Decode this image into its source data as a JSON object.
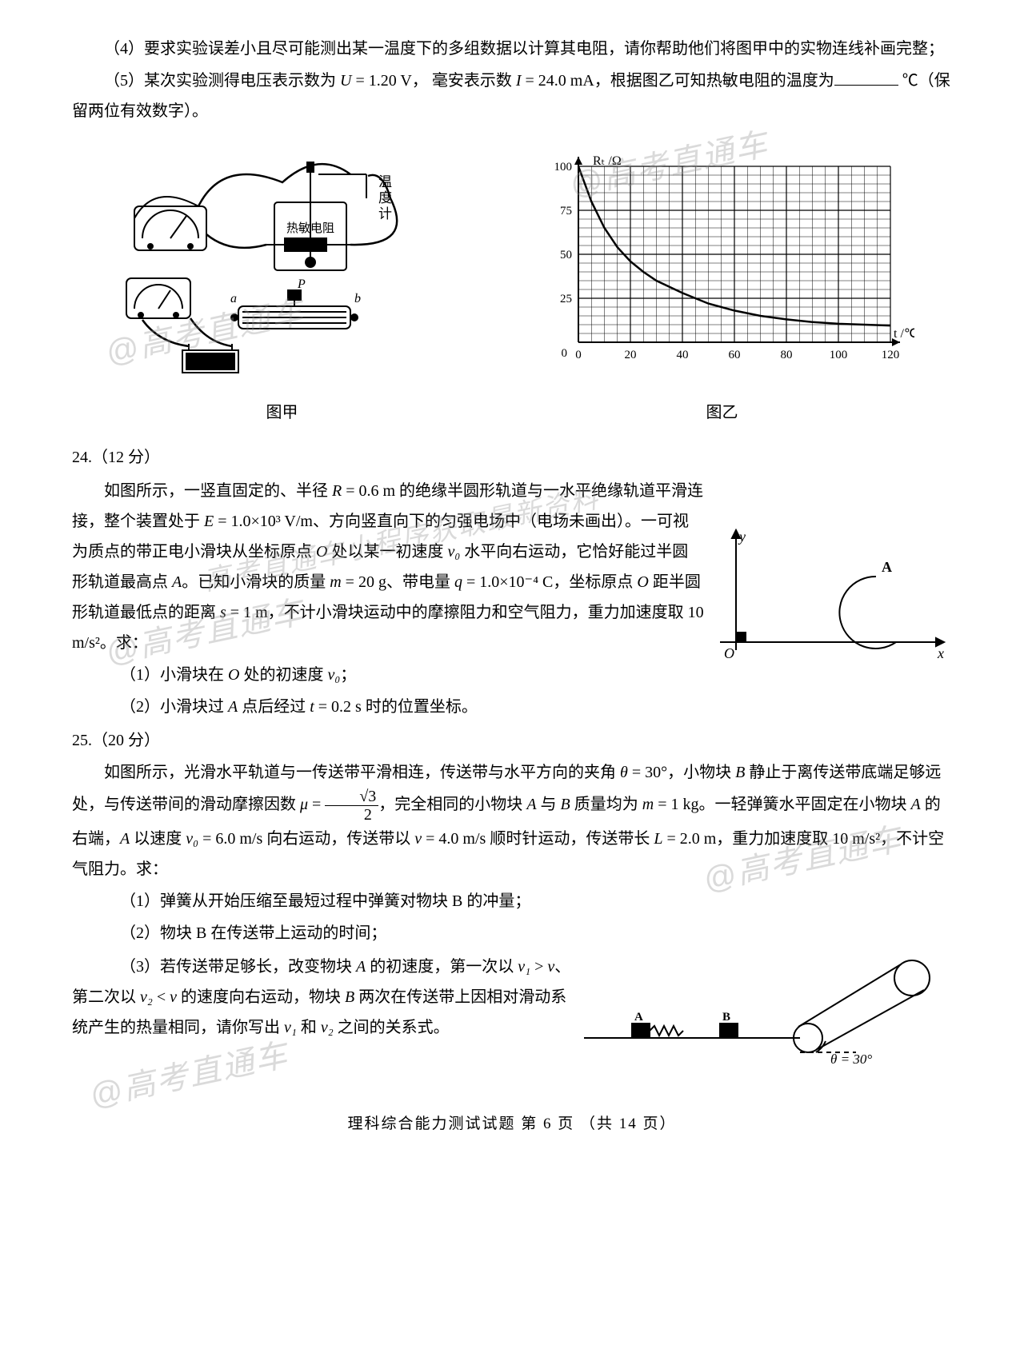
{
  "q23": {
    "p4": "（4）要求实验误差小且尽可能测出某一温度下的多组数据以计算其电阻，请你帮助他们将图甲中的实物连线补画完整；",
    "p5_a": "（5）某次实验测得电压表示数为 ",
    "p5_u": "U",
    "p5_b": " = 1.20 V， 毫安表示数 ",
    "p5_i": "I",
    "p5_c": " = 24.0 mA，根据图乙可知热敏电阻的温度为",
    "p5_d": " ℃（保留两位有效数字）。",
    "cap_a": "图甲",
    "cap_b": "图乙",
    "circuit": {
      "label_thermometer_1": "温",
      "label_thermometer_2": "度",
      "label_thermometer_3": "计",
      "label_resistor": "热敏电阻",
      "label_p": "P",
      "label_a": "a",
      "label_b": "b"
    },
    "chart": {
      "ylabel": "Rₜ /Ω",
      "xlabel": "t /℃",
      "ylim": [
        0,
        100
      ],
      "xlim": [
        0,
        120
      ],
      "yticks": [
        0,
        25,
        50,
        75,
        100
      ],
      "xticks": [
        0,
        20,
        40,
        60,
        80,
        100,
        120
      ],
      "grid_color": "#000",
      "curve_color": "#000",
      "background": "#fff",
      "curve_points": [
        [
          0,
          100
        ],
        [
          5,
          80
        ],
        [
          10,
          65
        ],
        [
          15,
          54
        ],
        [
          20,
          46
        ],
        [
          25,
          40
        ],
        [
          30,
          35
        ],
        [
          40,
          28
        ],
        [
          50,
          22
        ],
        [
          60,
          18
        ],
        [
          70,
          15
        ],
        [
          80,
          13
        ],
        [
          90,
          11.5
        ],
        [
          100,
          10.5
        ],
        [
          110,
          10
        ],
        [
          120,
          9.5
        ]
      ]
    }
  },
  "q24": {
    "header": "24.（12 分）",
    "p1_a": "如图所示，一竖直固定的、半径 ",
    "p1_R": "R",
    "p1_b": " = 0.6 m 的绝缘半圆形轨道与一水平绝缘轨道平滑连接，整个装置处于 ",
    "p1_E": "E",
    "p1_c": " = 1.0×10³ V/m、方向竖直向下的匀强电场中（电场未画出）。一可视为质点的带正电小滑块从坐标原点 ",
    "p1_O": "O",
    "p1_d": " 处以某一初速度 ",
    "p1_v0": "v₀",
    "p1_e": " 水平向右运动，它恰好能过半圆形轨道最高点 ",
    "p1_A": "A",
    "p1_f": "。已知小滑块的质量 ",
    "p1_m": "m",
    "p1_g": " = 20 g、带电量 ",
    "p1_q": "q",
    "p1_h": " = 1.0×10⁻⁴ C，坐标原点 ",
    "p1_O2": "O",
    "p1_i": " 距半圆形轨道最低点的距离 ",
    "p1_s": "s",
    "p1_j": " = 1 m，不计小滑块运动中的摩擦阻力和空气阻力，重力加速度取 10 m/s²。求：",
    "s1_a": "（1）小滑块在 ",
    "s1_O": "O",
    "s1_b": " 处的初速度 ",
    "s1_v0": "v₀",
    "s1_c": "；",
    "s2_a": "（2）小滑块过 ",
    "s2_A": "A",
    "s2_b": " 点后经过 ",
    "s2_t": "t",
    "s2_c": " = 0.2 s 时的位置坐标。",
    "diagram": {
      "y": "y",
      "x": "x",
      "O": "O",
      "A": "A"
    }
  },
  "q25": {
    "header": "25.（20 分）",
    "p1_a": "如图所示，光滑水平轨道与一传送带平滑相连，传送带与水平方向的夹角 ",
    "p1_th": "θ",
    "p1_b": " = 30°，小物块 ",
    "p1_B": "B",
    "p1_c": " 静止于离传送带底端足够远处，与传送带间的滑动摩擦因数 ",
    "p1_mu": "μ",
    "p1_d": " = ",
    "p1_frac_num": "√3",
    "p1_frac_den": "2",
    "p1_e": "，完全相同的小物块 ",
    "p1_A": "A",
    "p1_f": " 与 ",
    "p1_B2": "B",
    "p1_g": " 质量均为 ",
    "p1_m": "m",
    "p1_h": " = 1 kg。一轻弹簧水平固定在小物块 ",
    "p1_A2": "A",
    "p1_i": " 的右端，",
    "p1_A3": "A",
    "p1_j": " 以速度 ",
    "p1_v0": "v₀",
    "p1_k": " = 6.0 m/s 向右运动，传送带以 ",
    "p1_v": "v",
    "p1_l": " = 4.0 m/s 顺时针运动，传送带长 ",
    "p1_L": "L",
    "p1_m2": " = 2.0 m，重力加速度取 10 m/s²，不计空气阻力。求：",
    "s1": "（1）弹簧从开始压缩至最短过程中弹簧对物块 B 的冲量；",
    "s2": "（2）物块 B 在传送带上运动的时间；",
    "s3_a": "（3）若传送带足够长，改变物块 ",
    "s3_A": "A",
    "s3_b": " 的初速度，第一次以 ",
    "s3_v1": "v₁",
    "s3_c": " > ",
    "s3_v": "v",
    "s3_d": "、第二次以 ",
    "s3_v2": "v₂",
    "s3_e": " < ",
    "s3_v_2": "v",
    "s3_f": " 的速度向右运动，物块 ",
    "s3_B": "B",
    "s3_g": " 两次在传送带上因相对滑动系统产生的热量相同，请你写出 ",
    "s3_v1_2": "v₁",
    "s3_h": " 和 ",
    "s3_v2_2": "v₂",
    "s3_i": " 之间的关系式。",
    "diagram": {
      "A": "A",
      "B": "B",
      "theta": "θ = 30°"
    }
  },
  "footer": "理科综合能力测试试题  第 6 页 （共 14 页）",
  "watermarks": [
    "@高考直通车",
    "@高考直通车",
    "高考直通车小程序获取最新资料",
    "@高考直通车",
    "@高考直通车",
    "@高考直通车"
  ]
}
